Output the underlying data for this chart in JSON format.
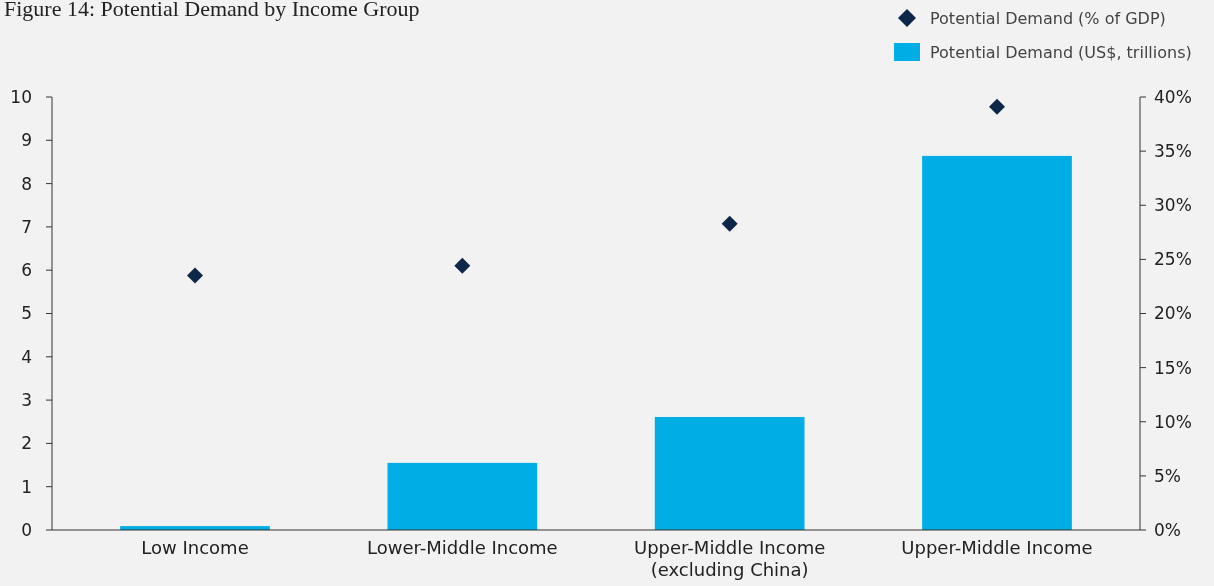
{
  "chart_data": {
    "type": "bar",
    "title": "Figure 14: Potential Demand by Income Group",
    "categories": [
      "Low Income",
      "Lower-Middle Income",
      "Upper-Middle Income\n(excluding China)",
      "Upper-Middle Income"
    ],
    "series": [
      {
        "name": "Potential Demand (US$, trillions)",
        "color": "#00ade4",
        "values": [
          0.09,
          1.55,
          2.61,
          8.64
        ]
      },
      {
        "name": "Potential Demand (% of GDP)",
        "type": "scatter",
        "axis": "y2",
        "marker": "diamond",
        "color": "#0c2748",
        "values": [
          23.5,
          24.4,
          28.3,
          39.1
        ]
      }
    ],
    "ylim": [
      0,
      10
    ],
    "yticks": [
      0,
      1,
      2,
      3,
      4,
      5,
      6,
      7,
      8,
      9,
      10
    ],
    "y2lim": [
      0,
      40
    ],
    "y2ticks": [
      {
        "value": 0,
        "label": "0%"
      },
      {
        "value": 5,
        "label": "5%"
      },
      {
        "value": 10,
        "label": "10%"
      },
      {
        "value": 15,
        "label": "15%"
      },
      {
        "value": 20,
        "label": "20%"
      },
      {
        "value": 25,
        "label": "25%"
      },
      {
        "value": 30,
        "label": "30%"
      },
      {
        "value": 35,
        "label": "35%"
      },
      {
        "value": 40,
        "label": "40%"
      }
    ],
    "grid": false,
    "legend": "top right"
  }
}
